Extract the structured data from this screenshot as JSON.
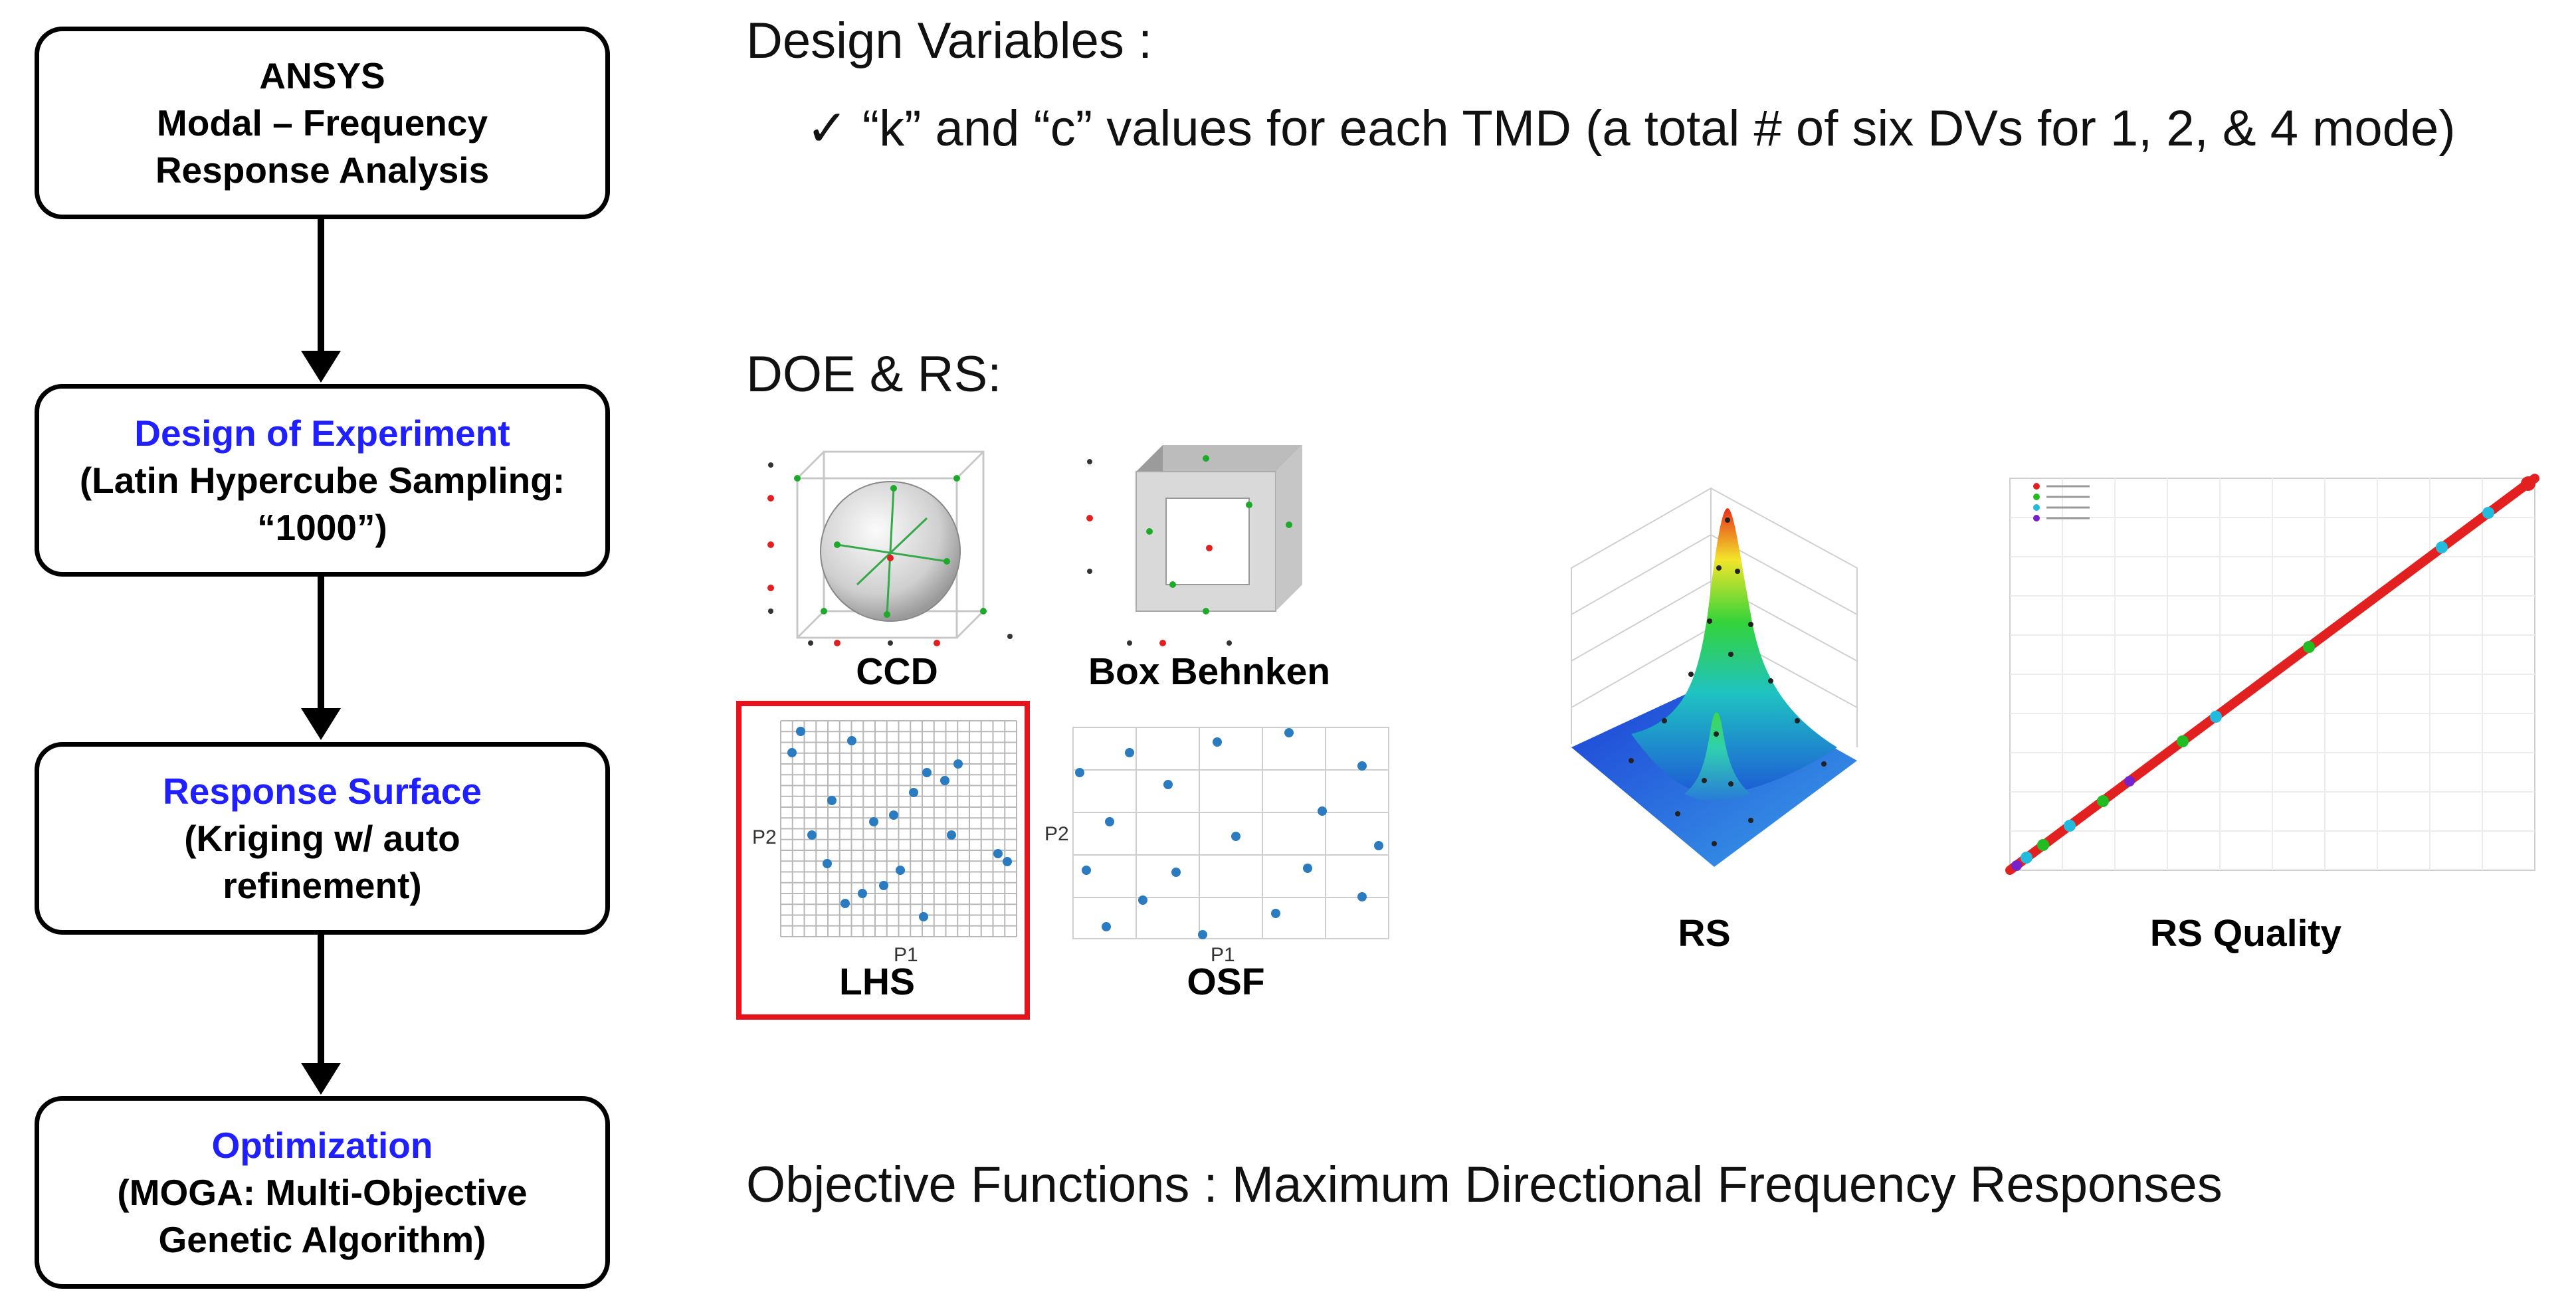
{
  "flowchart": {
    "steps": [
      {
        "title": "ANSYS",
        "lines": [
          "Modal – Frequency",
          "Response Analysis"
        ]
      },
      {
        "title": "Design of Experiment",
        "lines": [
          "(Latin Hypercube Sampling:",
          "“1000”)"
        ]
      },
      {
        "title": "Response Surface",
        "lines": [
          "(Kriging w/ auto",
          "refinement)"
        ]
      },
      {
        "title": "Optimization",
        "lines": [
          "(MOGA: Multi-Objective",
          "Genetic Algorithm)"
        ]
      }
    ]
  },
  "design_variables": {
    "heading": "Design Variables :",
    "check": "✓",
    "item": "“k” and “c” values for each TMD (a total # of six DVs for 1, 2, & 4 mode)"
  },
  "doe_rs": {
    "heading": "DOE & RS:",
    "thumbs": [
      "CCD",
      "Box Behnken",
      "LHS",
      "OSF",
      "RS",
      "RS Quality"
    ],
    "axis_p1": "P1",
    "axis_p2": "P2",
    "highlight_color": "#e8121a"
  },
  "objective": {
    "text": "Objective Functions : Maximum Directional Frequency Responses"
  },
  "colors": {
    "step_title_blue": "#1f1fff",
    "point_blue": "#2b7bc0"
  }
}
